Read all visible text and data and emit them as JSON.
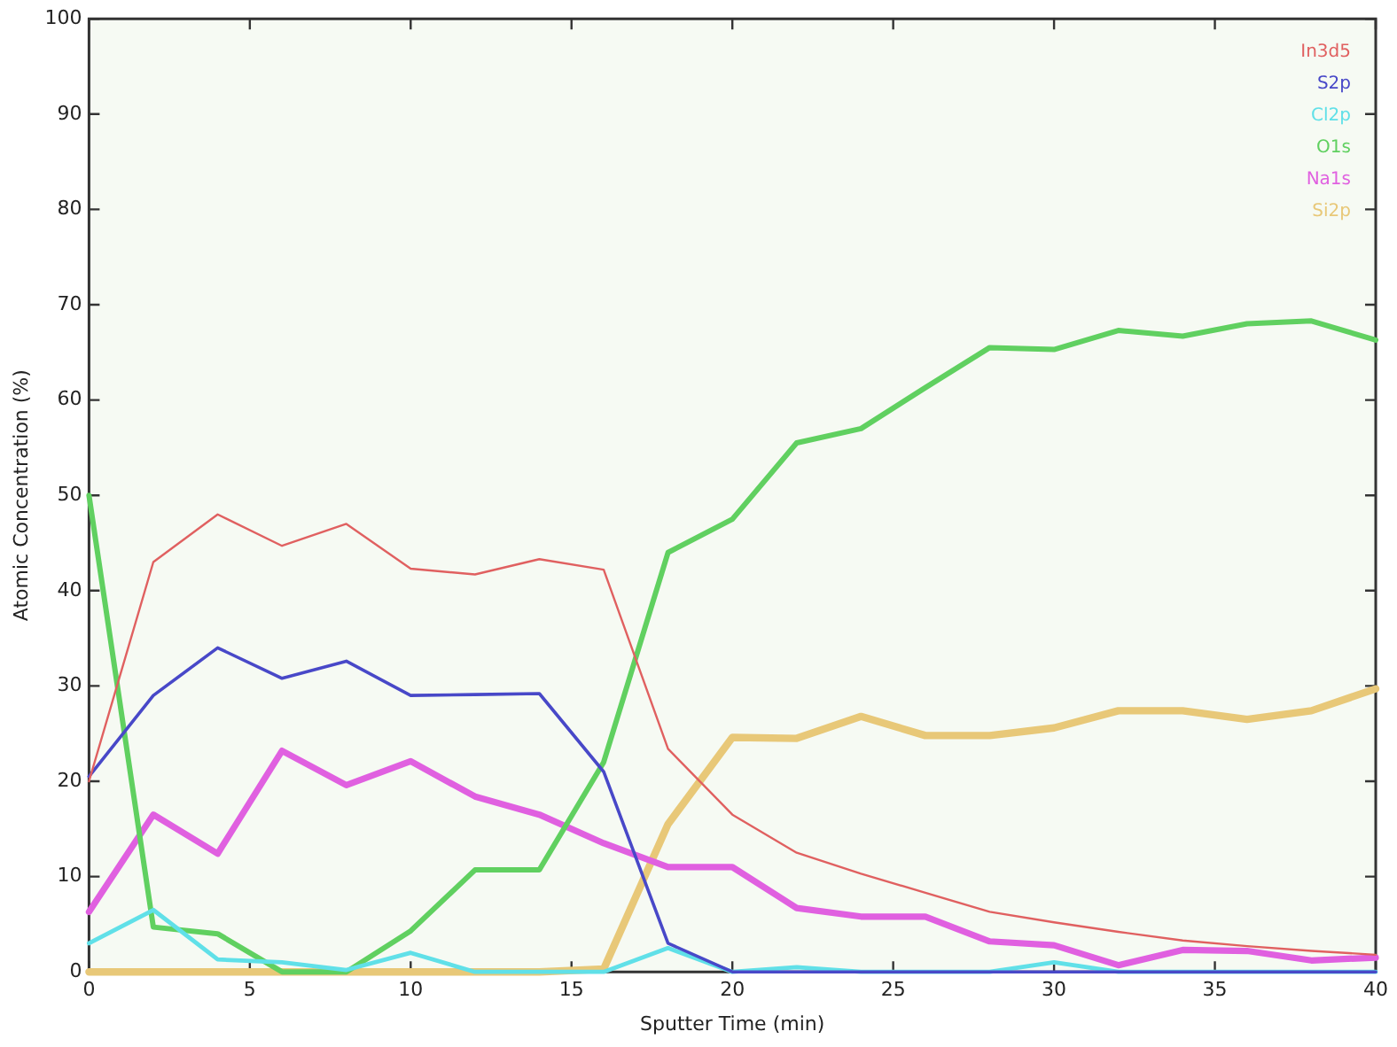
{
  "chart_data": {
    "type": "line",
    "xlabel": "Sputter Time (min)",
    "ylabel": "Atomic Concentration (%)",
    "x": [
      0,
      2,
      4,
      6,
      8,
      10,
      12,
      14,
      16,
      18,
      20,
      22,
      24,
      26,
      28,
      30,
      32,
      34,
      36,
      38,
      40
    ],
    "series": [
      {
        "name": "In3d5",
        "color": "#e06060",
        "values": [
          20,
          43,
          48,
          44.7,
          47,
          42.3,
          41.7,
          43.3,
          42.2,
          23.4,
          16.5,
          12.5,
          10.3,
          8.3,
          6.3,
          5.2,
          4.2,
          3.3,
          2.7,
          2.2,
          1.8
        ]
      },
      {
        "name": "S2p",
        "color": "#4848c8",
        "values": [
          20.5,
          29,
          34,
          30.8,
          32.6,
          29,
          29.1,
          29.2,
          21,
          3,
          0,
          0,
          0,
          0,
          0,
          0,
          0,
          0,
          0,
          0,
          0
        ]
      },
      {
        "name": "Cl2p",
        "color": "#60e0e8",
        "values": [
          3,
          6.5,
          1.3,
          1,
          0.2,
          2,
          0,
          0,
          0,
          2.5,
          0,
          0.5,
          0,
          0,
          0,
          1,
          0,
          0,
          0,
          0,
          0
        ]
      },
      {
        "name": "O1s",
        "color": "#60d060",
        "values": [
          50,
          4.7,
          4,
          0,
          0,
          4.3,
          10.7,
          10.7,
          22,
          44,
          47.5,
          55.5,
          57,
          61.3,
          65.5,
          65.3,
          67.3,
          66.7,
          68,
          68.3,
          66.3
        ]
      },
      {
        "name": "Na1s",
        "color": "#e060e0",
        "values": [
          6.3,
          16.5,
          12.4,
          23.2,
          19.6,
          22.1,
          18.4,
          16.5,
          13.5,
          11,
          11,
          6.7,
          5.8,
          5.8,
          3.2,
          2.8,
          0.7,
          2.3,
          2.2,
          1.2,
          1.5
        ]
      },
      {
        "name": "Si2p",
        "color": "#e8c878",
        "values": [
          0,
          0,
          0,
          0,
          0,
          0,
          0,
          0,
          0.3,
          15.5,
          24.6,
          24.5,
          26.8,
          24.8,
          24.8,
          25.6,
          27.4,
          27.4,
          26.5,
          27.4,
          29.7
        ]
      }
    ],
    "xlim": [
      0,
      40
    ],
    "xticks": [
      0,
      5,
      10,
      15,
      20,
      25,
      30,
      35,
      40
    ],
    "ylim": [
      0,
      100
    ],
    "yticks": [
      0,
      10,
      20,
      30,
      40,
      50,
      60,
      70,
      80,
      90,
      100
    ],
    "grid": false,
    "legend": "top right",
    "marker": "none",
    "line_style": "solid"
  }
}
